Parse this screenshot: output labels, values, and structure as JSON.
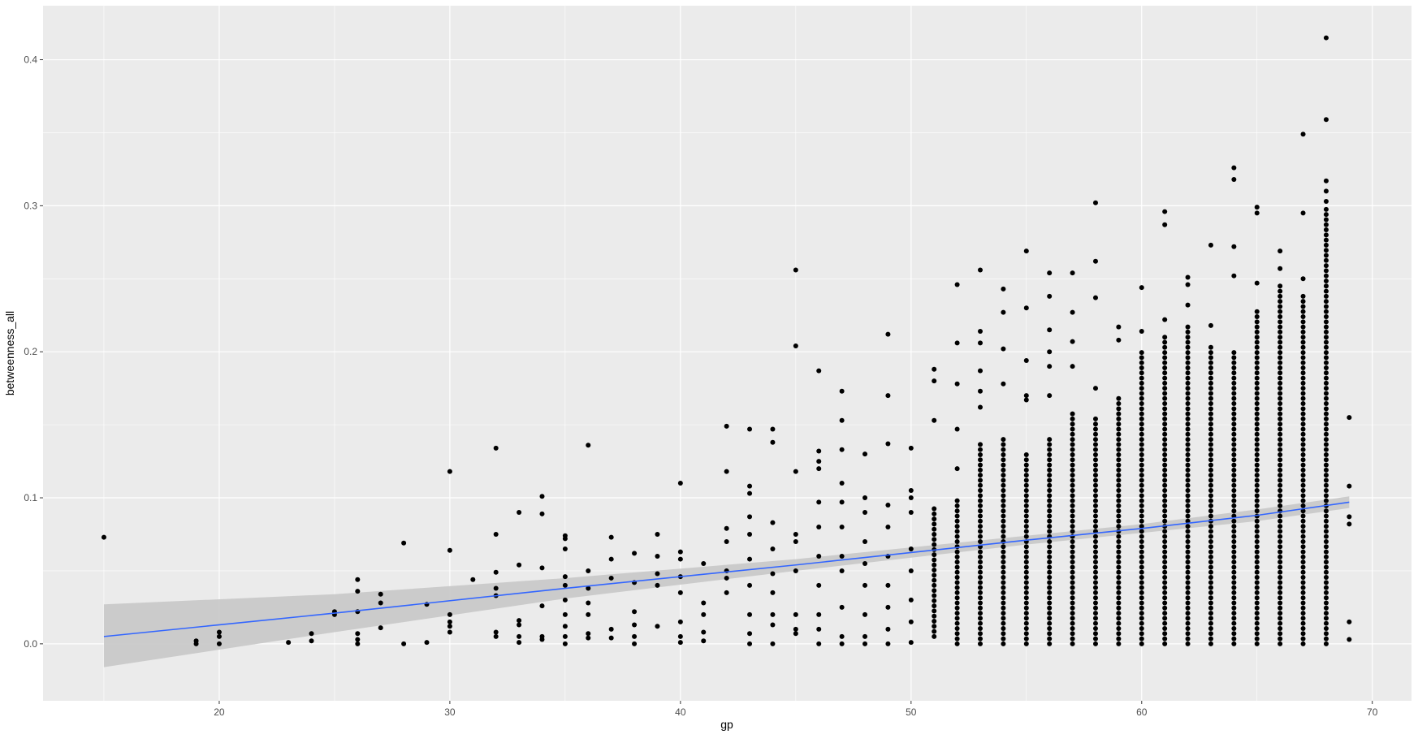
{
  "chart_data": {
    "type": "scatter",
    "title": "",
    "xlabel": "gp",
    "ylabel": "betweenness_all",
    "xlim": [
      12.36,
      71.7
    ],
    "ylim": [
      -0.039,
      0.437
    ],
    "xticks": [
      20,
      30,
      40,
      50,
      60,
      70
    ],
    "xtick_labels": [
      "20",
      "30",
      "40",
      "50",
      "60",
      "70"
    ],
    "yticks": [
      0.0,
      0.1,
      0.2,
      0.3,
      0.4
    ],
    "ytick_labels": [
      "0.0",
      "0.1",
      "0.2",
      "0.3",
      "0.4"
    ],
    "grid": true,
    "colors": {
      "panel": "#ebebeb",
      "grid": "#ffffff",
      "point": "#000000",
      "smooth": "#3366ff",
      "ribbon": "#c8c8c8"
    },
    "columns": [
      {
        "x": 15,
        "points": [
          0.073
        ]
      },
      {
        "x": 19,
        "points": [
          0.0,
          0.002
        ]
      },
      {
        "x": 20,
        "points": [
          0.0,
          0.005,
          0.008
        ]
      },
      {
        "x": 23,
        "points": [
          0.001
        ]
      },
      {
        "x": 24,
        "points": [
          0.002,
          0.007
        ]
      },
      {
        "x": 25,
        "points": [
          0.02,
          0.022
        ]
      },
      {
        "x": 26,
        "points": [
          0.0,
          0.003,
          0.007,
          0.022,
          0.036,
          0.044
        ]
      },
      {
        "x": 27,
        "points": [
          0.011,
          0.028,
          0.034
        ]
      },
      {
        "x": 28,
        "points": [
          0.0,
          0.069
        ]
      },
      {
        "x": 29,
        "points": [
          0.001,
          0.027
        ]
      },
      {
        "x": 30,
        "points": [
          0.008,
          0.012,
          0.015,
          0.02,
          0.064,
          0.118
        ]
      },
      {
        "x": 31,
        "points": [
          0.044
        ]
      },
      {
        "x": 32,
        "points": [
          0.005,
          0.008,
          0.033,
          0.038,
          0.049,
          0.075,
          0.134
        ]
      },
      {
        "x": 33,
        "points": [
          0.001,
          0.005,
          0.013,
          0.016,
          0.054,
          0.09
        ]
      },
      {
        "x": 34,
        "points": [
          0.003,
          0.005,
          0.026,
          0.052,
          0.089,
          0.101
        ]
      },
      {
        "x": 35,
        "points": [
          0.0,
          0.005,
          0.012,
          0.02,
          0.03,
          0.04,
          0.046,
          0.065,
          0.072,
          0.074
        ]
      },
      {
        "x": 36,
        "points": [
          0.004,
          0.007,
          0.02,
          0.028,
          0.038,
          0.05,
          0.136
        ]
      },
      {
        "x": 37,
        "points": [
          0.004,
          0.01,
          0.045,
          0.058,
          0.073
        ]
      },
      {
        "x": 38,
        "points": [
          0.0,
          0.005,
          0.013,
          0.022,
          0.042,
          0.062
        ]
      },
      {
        "x": 39,
        "points": [
          0.012,
          0.04,
          0.048,
          0.06,
          0.075
        ]
      },
      {
        "x": 40,
        "points": [
          0.001,
          0.005,
          0.015,
          0.035,
          0.046,
          0.058,
          0.063,
          0.11
        ]
      },
      {
        "x": 41,
        "points": [
          0.002,
          0.008,
          0.02,
          0.028,
          0.055
        ]
      },
      {
        "x": 42,
        "points": [
          0.035,
          0.045,
          0.05,
          0.07,
          0.079,
          0.118,
          0.149
        ]
      },
      {
        "x": 43,
        "points": [
          0.0,
          0.007,
          0.02,
          0.04,
          0.058,
          0.075,
          0.087,
          0.103,
          0.108,
          0.147
        ]
      },
      {
        "x": 44,
        "points": [
          0.0,
          0.013,
          0.02,
          0.035,
          0.048,
          0.065,
          0.083,
          0.138,
          0.147
        ]
      },
      {
        "x": 45,
        "points": [
          0.007,
          0.01,
          0.02,
          0.05,
          0.07,
          0.075,
          0.118,
          0.204,
          0.256
        ]
      },
      {
        "x": 46,
        "points": [
          0.0,
          0.01,
          0.02,
          0.04,
          0.06,
          0.08,
          0.097,
          0.12,
          0.125,
          0.132,
          0.187
        ]
      },
      {
        "x": 47,
        "points": [
          0.0,
          0.005,
          0.025,
          0.05,
          0.06,
          0.08,
          0.097,
          0.11,
          0.133,
          0.153,
          0.173
        ]
      },
      {
        "x": 48,
        "points": [
          0.0,
          0.005,
          0.02,
          0.04,
          0.055,
          0.07,
          0.09,
          0.1,
          0.13
        ]
      },
      {
        "x": 49,
        "points": [
          0.0,
          0.01,
          0.025,
          0.04,
          0.06,
          0.08,
          0.095,
          0.137,
          0.17,
          0.212
        ]
      },
      {
        "x": 50,
        "points": [
          0.001,
          0.015,
          0.03,
          0.05,
          0.065,
          0.09,
          0.1,
          0.105,
          0.134
        ]
      },
      {
        "x": 51,
        "points": [
          0.153,
          0.18,
          0.188
        ],
        "dense": [
          0.005,
          0.095
        ]
      },
      {
        "x": 52,
        "points": [
          0.12,
          0.147,
          0.178,
          0.206,
          0.246
        ],
        "dense": [
          0.0,
          0.1
        ]
      },
      {
        "x": 53,
        "points": [
          0.162,
          0.173,
          0.187,
          0.206,
          0.214,
          0.256
        ],
        "dense": [
          0.0,
          0.137
        ]
      },
      {
        "x": 54,
        "points": [
          0.178,
          0.202,
          0.227,
          0.243
        ],
        "dense": [
          0.0,
          0.14
        ]
      },
      {
        "x": 55,
        "points": [
          0.167,
          0.17,
          0.194,
          0.23,
          0.269
        ],
        "dense": [
          0.0,
          0.13
        ]
      },
      {
        "x": 56,
        "points": [
          0.17,
          0.19,
          0.2,
          0.215,
          0.238,
          0.254
        ],
        "dense": [
          0.0,
          0.142
        ]
      },
      {
        "x": 57,
        "points": [
          0.19,
          0.207,
          0.227,
          0.254
        ],
        "dense": [
          0.0,
          0.16
        ]
      },
      {
        "x": 58,
        "points": [
          0.175,
          0.237,
          0.262,
          0.302
        ],
        "dense": [
          0.0,
          0.156
        ]
      },
      {
        "x": 59,
        "points": [
          0.208,
          0.217
        ],
        "dense": [
          0.0,
          0.17
        ]
      },
      {
        "x": 60,
        "points": [
          0.214,
          0.244
        ],
        "dense": [
          0.0,
          0.2
        ]
      },
      {
        "x": 61,
        "points": [
          0.222,
          0.287,
          0.296
        ],
        "dense": [
          0.0,
          0.21
        ]
      },
      {
        "x": 62,
        "points": [
          0.232,
          0.246,
          0.251
        ],
        "dense": [
          0.0,
          0.22
        ]
      },
      {
        "x": 63,
        "points": [
          0.218,
          0.273
        ],
        "dense": [
          0.0,
          0.205
        ]
      },
      {
        "x": 64,
        "points": [
          0.252,
          0.272,
          0.318,
          0.326
        ],
        "dense": [
          0.0,
          0.2
        ]
      },
      {
        "x": 65,
        "points": [
          0.247,
          0.295,
          0.299
        ],
        "dense": [
          0.0,
          0.23
        ]
      },
      {
        "x": 66,
        "points": [
          0.257,
          0.269
        ],
        "dense": [
          0.0,
          0.248
        ]
      },
      {
        "x": 67,
        "points": [
          0.25,
          0.295,
          0.349
        ],
        "dense": [
          0.0,
          0.24
        ]
      },
      {
        "x": 68,
        "points": [
          0.303,
          0.31,
          0.317,
          0.359,
          0.415
        ],
        "dense": [
          0.0,
          0.3
        ]
      },
      {
        "x": 69,
        "points": [
          0.003,
          0.015,
          0.082,
          0.087,
          0.108,
          0.155
        ]
      }
    ],
    "smooth": {
      "method": "lm",
      "x": [
        15,
        25,
        35,
        45,
        55,
        60,
        65,
        69
      ],
      "y": [
        0.005,
        0.021,
        0.038,
        0.054,
        0.071,
        0.079,
        0.088,
        0.097
      ],
      "lo": [
        -0.016,
        0.008,
        0.031,
        0.05,
        0.068,
        0.076,
        0.084,
        0.093
      ],
      "hi": [
        0.027,
        0.034,
        0.045,
        0.058,
        0.074,
        0.082,
        0.092,
        0.101
      ]
    }
  }
}
